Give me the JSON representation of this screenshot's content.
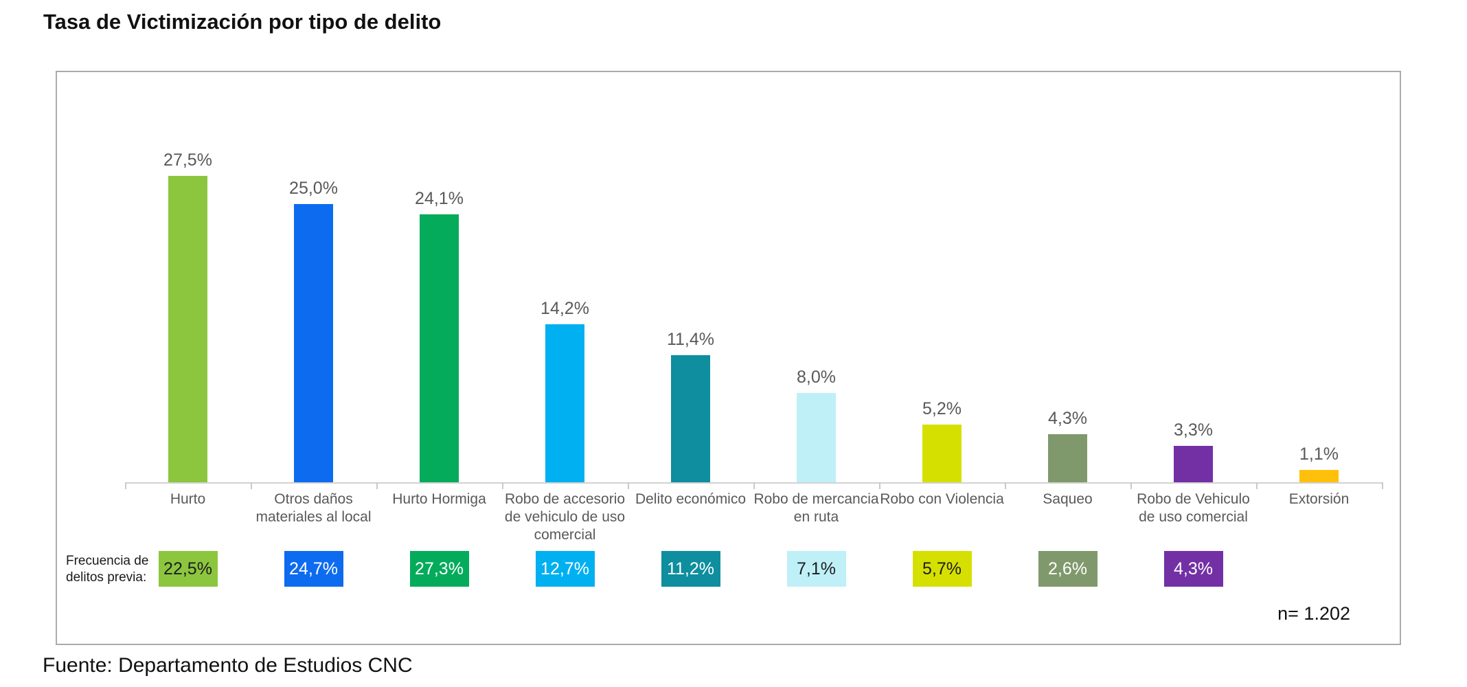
{
  "title": "Tasa de Victimización por tipo de delito",
  "source": "Fuente: Departamento de Estudios CNC",
  "sample_label": "n= 1.202",
  "freq_row_label": "Frecuencia de delitos previa:",
  "chart_data": {
    "type": "bar",
    "title": "Tasa de Victimización por tipo de delito",
    "xlabel": "",
    "ylabel": "",
    "ylim": [
      0,
      30
    ],
    "grid": false,
    "legend_position": "none",
    "sample_size": "n= 1.202",
    "categories": [
      "Hurto",
      "Otros daños materiales al local",
      "Hurto Hormiga",
      "Robo de accesorio de vehiculo de uso comercial",
      "Delito económico",
      "Robo de mercancia en ruta",
      "Robo con Violencia",
      "Saqueo",
      "Robo de Vehiculo de uso comercial",
      "Extorsión"
    ],
    "series": [
      {
        "name": "Tasa de victimización",
        "values": [
          27.5,
          25.0,
          24.1,
          14.2,
          11.4,
          8.0,
          5.2,
          4.3,
          3.3,
          1.1
        ],
        "labels": [
          "27,5%",
          "25,0%",
          "24,1%",
          "14,2%",
          "11,4%",
          "8,0%",
          "5,2%",
          "4,3%",
          "3,3%",
          "1,1%"
        ]
      },
      {
        "name": "Frecuencia de delitos previa",
        "values": [
          22.5,
          24.7,
          27.3,
          12.7,
          11.2,
          7.1,
          5.7,
          2.6,
          4.3,
          null
        ],
        "labels": [
          "22,5%",
          "24,7%",
          "27,3%",
          "12,7%",
          "11,2%",
          "7,1%",
          "5,7%",
          "2,6%",
          "4,3%",
          null
        ]
      }
    ],
    "bar_colors": [
      "#8cc63f",
      "#0d6bf0",
      "#04ab5b",
      "#00b0f0",
      "#0e8e9e",
      "#bff0f8",
      "#d6e000",
      "#80996c",
      "#7330a5",
      "#ffc00b"
    ],
    "freq_box_text_colors": [
      "dark",
      "light",
      "light",
      "light",
      "light",
      "dark",
      "dark",
      "light",
      "light",
      null
    ],
    "value_label_color": "#595959",
    "axis_color": "#d2d2d2",
    "frame_border_color": "#ababab"
  }
}
